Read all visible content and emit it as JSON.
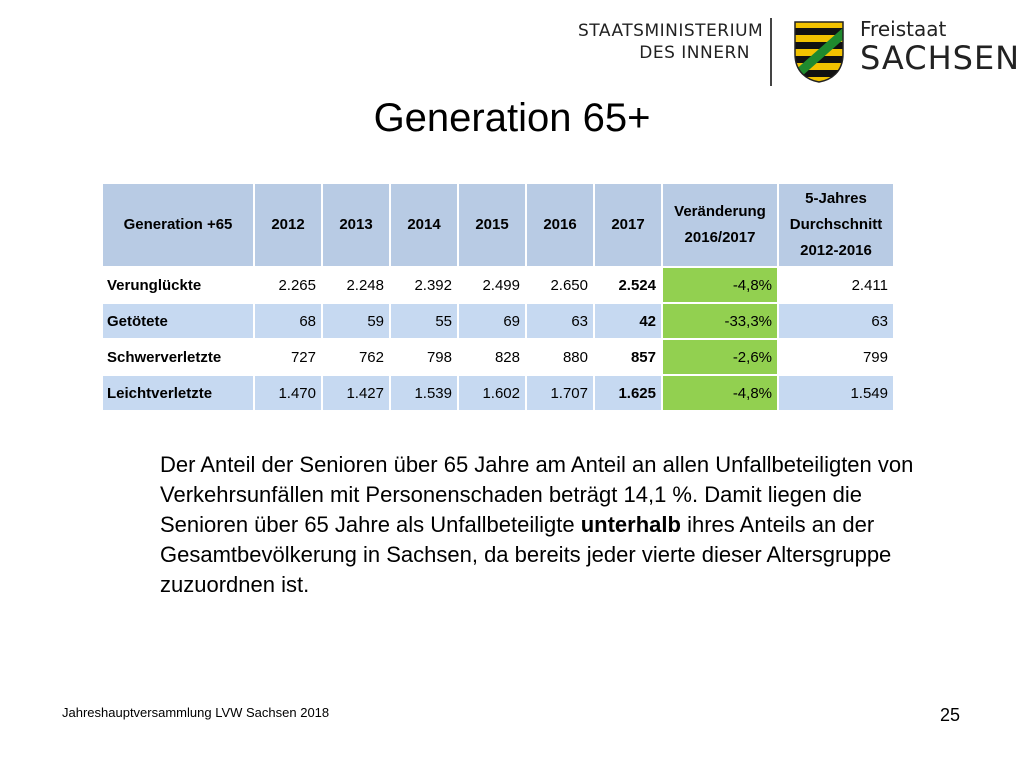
{
  "header": {
    "ministry_line1": "STAATSMINISTERIUM",
    "ministry_line2": "DES INNERN",
    "state_small": "Freistaat",
    "state_big": "SACHSEN"
  },
  "slide": {
    "title": "Generation 65+",
    "paragraph_part1": "Der Anteil der Senioren über 65 Jahre am Anteil an allen Unfallbeteiligten von Verkehrsunfällen mit Personenschaden beträgt 14,1 %. Damit liegen die Senioren über 65 Jahre als Unfallbeteiligte ",
    "paragraph_bold": "unterhalb",
    "paragraph_part2": " ihres Anteils an der Gesamtbevölkerung in Sachsen, da bereits jeder vierte dieser Altersgruppe zuzuordnen ist.",
    "footer": "Jahreshauptversammlung LVW Sachsen 2018",
    "page_number": "25"
  },
  "table": {
    "headers": {
      "category": "Generation +65",
      "y2012": "2012",
      "y2013": "2013",
      "y2014": "2014",
      "y2015": "2015",
      "y2016": "2016",
      "y2017": "2017",
      "change_l1": "Veränderung",
      "change_l2": "2016/2017",
      "avg_l1": "5-Jahres",
      "avg_l2": "Durchschnitt",
      "avg_l3": "2012-2016"
    },
    "rows": [
      {
        "label": "Verunglückte",
        "v2012": "2.265",
        "v2013": "2.248",
        "v2014": "2.392",
        "v2015": "2.499",
        "v2016": "2.650",
        "v2017": "2.524",
        "change": "-4,8%",
        "avg": "2.411"
      },
      {
        "label": "Getötete",
        "v2012": "68",
        "v2013": "59",
        "v2014": "55",
        "v2015": "69",
        "v2016": "63",
        "v2017": "42",
        "change": "-33,3%",
        "avg": "63"
      },
      {
        "label": "Schwerverletzte",
        "v2012": "727",
        "v2013": "762",
        "v2014": "798",
        "v2015": "828",
        "v2016": "880",
        "v2017": "857",
        "change": "-2,6%",
        "avg": "799"
      },
      {
        "label": "Leichtverletzte",
        "v2012": "1.470",
        "v2013": "1.427",
        "v2014": "1.539",
        "v2015": "1.602",
        "v2016": "1.707",
        "v2017": "1.625",
        "change": "-4,8%",
        "avg": "1.549"
      }
    ],
    "colors": {
      "header_bg": "#b8cbe4",
      "alt_row_bg": "#c6d9f1",
      "change_bg": "#92d050"
    }
  }
}
